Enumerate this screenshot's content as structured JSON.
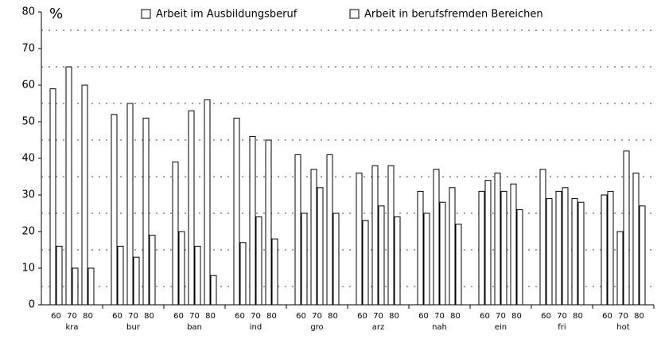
{
  "chart_data": {
    "type": "bar",
    "y_axis_label": "%",
    "groups": [
      "kra",
      "bur",
      "ban",
      "ind",
      "gro",
      "arz",
      "nah",
      "ein",
      "fri",
      "hot"
    ],
    "categories": [
      "60",
      "70",
      "80",
      "60",
      "70",
      "80",
      "60",
      "70",
      "80",
      "60",
      "70",
      "80",
      "60",
      "70",
      "80",
      "60",
      "70",
      "80",
      "60",
      "70",
      "80",
      "60",
      "70",
      "80",
      "60",
      "70",
      "80",
      "60",
      "70",
      "80"
    ],
    "series": [
      {
        "name": "Arbeit im Ausbildungsberuf",
        "color": "#ffffff",
        "values": [
          59,
          65,
          60,
          52,
          55,
          51,
          39,
          53,
          56,
          51,
          46,
          45,
          41,
          37,
          41,
          36,
          38,
          38,
          31,
          37,
          32,
          31,
          36,
          33,
          37,
          31,
          29,
          30,
          20,
          36
        ]
      },
      {
        "name": "Arbeit in berufsfremden Bereichen",
        "color": "#ffffff",
        "values": [
          16,
          10,
          10,
          16,
          13,
          19,
          20,
          16,
          8,
          17,
          24,
          18,
          25,
          32,
          25,
          23,
          27,
          24,
          25,
          28,
          22,
          34,
          31,
          26,
          29,
          32,
          28,
          31,
          42,
          27
        ]
      }
    ],
    "ylim": [
      0,
      80
    ],
    "yticks": [
      0,
      10,
      20,
      30,
      40,
      50,
      60,
      70,
      80
    ],
    "minor_grid": [
      5,
      15,
      25,
      35,
      45,
      55,
      65,
      75
    ],
    "grid": true
  }
}
